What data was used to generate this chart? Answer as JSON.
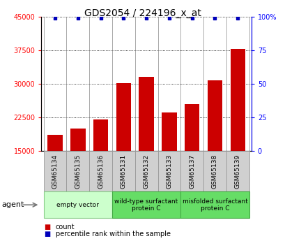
{
  "title": "GDS2054 / 224196_x_at",
  "categories": [
    "GSM65134",
    "GSM65135",
    "GSM65136",
    "GSM65131",
    "GSM65132",
    "GSM65133",
    "GSM65137",
    "GSM65138",
    "GSM65139"
  ],
  "counts": [
    18500,
    20000,
    22000,
    30200,
    31500,
    23500,
    25500,
    30800,
    37800
  ],
  "percentile_ranks": [
    99,
    99,
    99,
    99,
    99,
    99,
    99,
    99,
    99
  ],
  "bar_color": "#cc0000",
  "dot_color": "#0000bb",
  "ylim_left": [
    15000,
    45000
  ],
  "ylim_right": [
    0,
    100
  ],
  "yticks_left": [
    15000,
    22500,
    30000,
    37500,
    45000
  ],
  "ytick_labels_left": [
    "15000",
    "22500",
    "30000",
    "37500",
    "45000"
  ],
  "yticks_right": [
    0,
    25,
    50,
    75,
    100
  ],
  "ytick_labels_right": [
    "0",
    "25",
    "50",
    "75",
    "100%"
  ],
  "groups": [
    {
      "label": "empty vector",
      "start": 0,
      "end": 3,
      "color": "#ccffcc",
      "border": "#88cc88"
    },
    {
      "label": "wild-type surfactant\nprotein C",
      "start": 3,
      "end": 6,
      "color": "#66dd66",
      "border": "#44aa44"
    },
    {
      "label": "misfolded surfactant\nprotein C",
      "start": 6,
      "end": 9,
      "color": "#66dd66",
      "border": "#44aa44"
    }
  ],
  "agent_label": "agent",
  "legend_count_label": "count",
  "legend_pct_label": "percentile rank within the sample",
  "background_color": "#ffffff",
  "tickbox_color": "#d0d0d0",
  "tickbox_edge": "#999999",
  "title_fontsize": 10,
  "tick_label_fontsize": 7,
  "bar_label_fontsize": 6.5,
  "group_label_fontsize": 6.5,
  "legend_fontsize": 7,
  "agent_fontsize": 8
}
